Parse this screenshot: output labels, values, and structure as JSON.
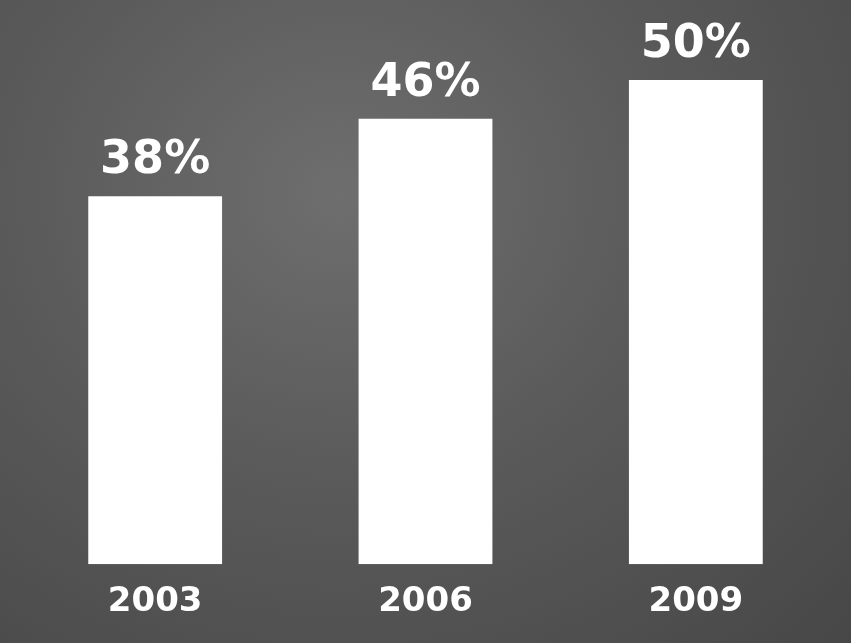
{
  "chart_data": {
    "type": "bar",
    "categories": [
      "2003",
      "2006",
      "2009"
    ],
    "values": [
      38,
      46,
      50
    ],
    "value_labels": [
      "38%",
      "46%",
      "50%"
    ],
    "color": "#ffffff",
    "data_labels": true,
    "tick_labels": "x",
    "grid": false
  }
}
